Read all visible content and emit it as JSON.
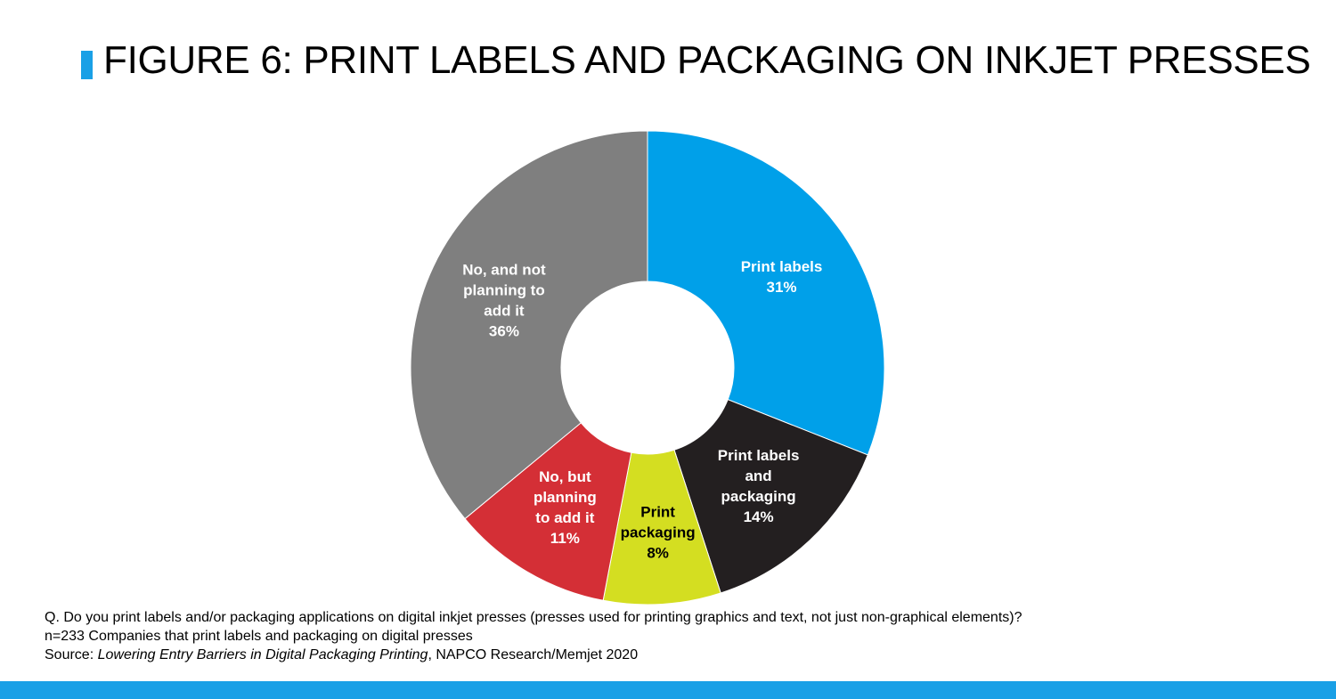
{
  "title": "FIGURE 6: PRINT LABELS AND PACKAGING ON INKJET PRESSES",
  "colors": {
    "accent": "#1aa0e6",
    "print_labels": "#00a0e9",
    "print_labels_and_packaging": "#231f20",
    "print_packaging": "#d4de21",
    "no_but_planning": "#d42f36",
    "no_not_planning": "#7f7f7f"
  },
  "chart_data": {
    "type": "pie",
    "donut": true,
    "title": "FIGURE 6: PRINT LABELS AND PACKAGING ON INKJET PRESSES",
    "slices": [
      {
        "label": "Print labels",
        "lines": [
          "Print labels",
          "31%"
        ],
        "value": 31,
        "color": "#00a0e9",
        "text_color": "#ffffff"
      },
      {
        "label": "Print labels and packaging",
        "lines": [
          "Print labels",
          "and",
          "packaging",
          "14%"
        ],
        "value": 14,
        "color": "#231f20",
        "text_color": "#ffffff"
      },
      {
        "label": "Print packaging",
        "lines": [
          "Print",
          "packaging",
          "8%"
        ],
        "value": 8,
        "color": "#d4de21",
        "text_color": "#000000"
      },
      {
        "label": "No, but planning to add it",
        "lines": [
          "No, but",
          "planning",
          "to add it",
          "11%"
        ],
        "value": 11,
        "color": "#d42f36",
        "text_color": "#ffffff"
      },
      {
        "label": "No, and not planning to add it",
        "lines": [
          "No, and not",
          "planning to",
          "add it",
          "36%"
        ],
        "value": 36,
        "color": "#7f7f7f",
        "text_color": "#ffffff"
      }
    ]
  },
  "notes": {
    "question": "Q. Do you print labels and/or packaging applications on digital inkjet presses (presses used for printing graphics and text, not just non-graphical elements)?",
    "sample": "n=233 Companies that print labels and packaging on digital presses",
    "source_prefix": "Source: ",
    "source_title": "Lowering Entry Barriers in Digital Packaging Printing",
    "source_suffix": ", NAPCO Research/Memjet 2020"
  }
}
